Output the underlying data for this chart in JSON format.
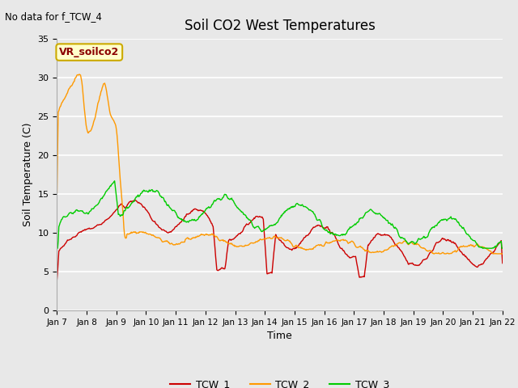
{
  "title": "Soil CO2 West Temperatures",
  "subtitle": "No data for f_TCW_4",
  "xlabel": "Time",
  "ylabel": "Soil Temperature (C)",
  "ylim": [
    0,
    35
  ],
  "yticks": [
    0,
    5,
    10,
    15,
    20,
    25,
    30,
    35
  ],
  "bg_color": "#e8e8e8",
  "plot_bg_color": "#e8e8e8",
  "grid_color": "#ffffff",
  "legend_label": "VR_soilco2",
  "legend_bg": "#ffffcc",
  "legend_border": "#ccaa00",
  "series": {
    "TCW_1": {
      "color": "#cc0000",
      "lw": 1.0
    },
    "TCW_2": {
      "color": "#ff9900",
      "lw": 1.0
    },
    "TCW_3": {
      "color": "#00cc00",
      "lw": 1.0
    }
  },
  "xtick_labels": [
    "Jan 7",
    "Jan 8",
    "Jan 9",
    "Jan 10",
    "Jan 11",
    "Jan 12",
    "Jan 13",
    "Jan 14",
    "Jan 15",
    "Jan 16",
    "Jan 17",
    "Jan 18",
    "Jan 19",
    "Jan 20",
    "Jan 21",
    "Jan 22"
  ],
  "n_points": 720
}
